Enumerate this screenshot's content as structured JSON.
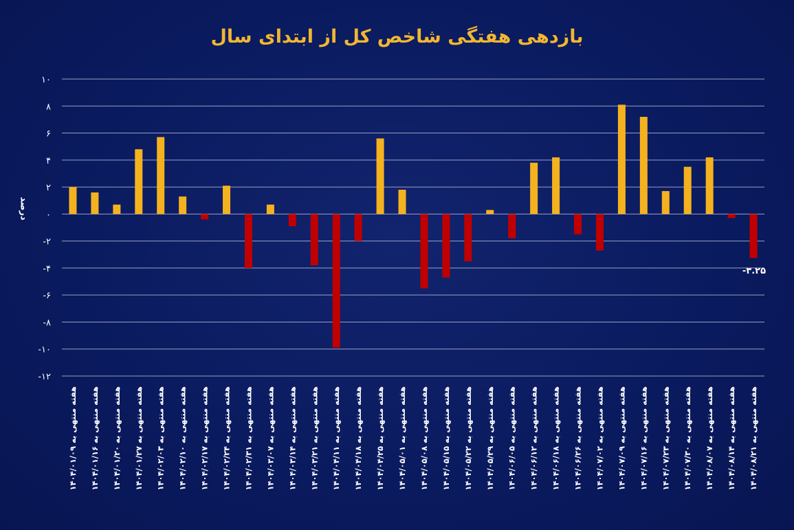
{
  "chart_data": {
    "type": "bar",
    "title": "بازدهی هفتگی شاخص کل از ابتدای سال",
    "ylabel": "درصد",
    "xlabel": "",
    "ylim": [
      -12,
      10
    ],
    "yticks": [
      10,
      8,
      6,
      4,
      2,
      0,
      -2,
      -4,
      -6,
      -8,
      -10,
      -12
    ],
    "ytick_labels": [
      "۱۰",
      "۸",
      "۶",
      "۴",
      "۲",
      "۰",
      "-۲",
      "-۴",
      "-۶",
      "-۸",
      "-۱۰",
      "-۱۲"
    ],
    "grid": true,
    "positive_color": "#f5b21f",
    "negative_color": "#c00000",
    "categories": [
      "هفته منتهی به ۱۴۰۴/۰۱/۰۹",
      "هفته منتهی به ۱۴۰۴/۰۱/۱۶",
      "هفته منتهی به ۱۴۰۴/۰۱/۲۰",
      "هفته منتهی به ۱۴۰۴/۰۱/۲۷",
      "هفته منتهی به ۱۴۰۴/۰۲/۰۳",
      "هفته منتهی به ۱۴۰۴/۰۲/۱۰",
      "هفته منتهی به ۱۴۰۴/۰۲/۱۷",
      "هفته منتهی به ۱۴۰۴/۰۲/۲۴",
      "هفته منتهی به ۱۴۰۴/۰۲/۳۱",
      "هفته منتهی به ۱۴۰۴/۰۳/۰۷",
      "هفته منتهی به ۱۴۰۴/۰۳/۱۴",
      "هفته منتهی به ۱۴۰۴/۰۳/۲۱",
      "هفته منتهی به ۱۴۰۴/۰۴/۱۱",
      "هفته منتهی به ۱۴۰۴/۰۴/۱۸",
      "هفته منتهی به ۱۴۰۴/۰۴/۲۵",
      "هفته منتهی به ۱۴۰۴/۰۵/۰۱",
      "هفته منتهی به ۱۴۰۴/۰۵/۰۸",
      "هفته منتهی به ۱۴۰۴/۰۵/۱۵",
      "هفته منتهی به ۱۴۰۴/۰۵/۲۲",
      "هفته منتهی به ۱۴۰۴/۰۵/۲۹",
      "هفته منتهی به ۱۴۰۴/۰۶/۰۵",
      "هفته منتهی به ۱۴۰۴/۰۶/۱۲",
      "هفته منتهی به ۱۴۰۴/۰۶/۱۸",
      "هفته منتهی به ۱۴۰۴/۰۶/۲۶",
      "هفته منتهی به ۱۴۰۴/۰۷/۰۲",
      "هفته منتهی به ۱۴۰۴/۰۷/۰۹",
      "هفته منتهی به ۱۴۰۴/۰۷/۱۶",
      "هفته منتهی به ۱۴۰۴/۰۷/۲۳",
      "هفته منتهی به ۱۴۰۴/۰۷/۳۰",
      "هفته منتهی به ۱۴۰۴/۰۸/۰۷",
      "هفته منتهی به ۱۴۰۴/۰۸/۱۴",
      "هفته منتهی به ۱۴۰۴/۰۸/۲۱"
    ],
    "values": [
      2.0,
      1.6,
      0.7,
      4.8,
      5.7,
      1.3,
      -0.4,
      2.1,
      -4.0,
      0.7,
      -0.9,
      -3.8,
      -9.9,
      -2.0,
      5.6,
      1.8,
      -5.5,
      -4.7,
      -3.5,
      0.3,
      -1.8,
      3.8,
      4.2,
      -1.5,
      -2.7,
      8.1,
      7.2,
      1.7,
      3.5,
      4.2,
      -0.3,
      -3.25
    ],
    "data_labels": [
      {
        "index": 31,
        "text": "-۳.۲۵"
      }
    ]
  }
}
